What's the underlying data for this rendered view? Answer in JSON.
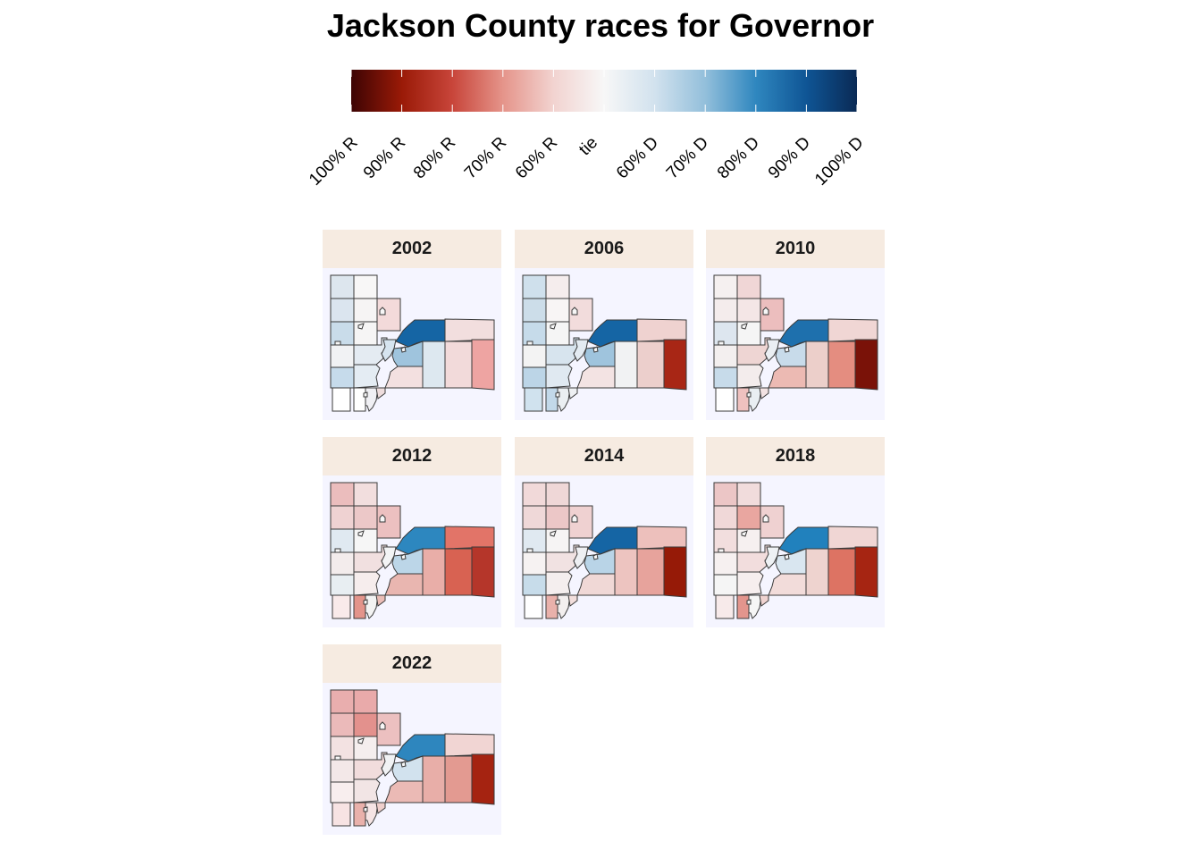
{
  "title": "Jackson County races for Governor",
  "legend": {
    "labels": [
      "100% R",
      "90% R",
      "80% R",
      "70% R",
      "60% R",
      "tie",
      "60% D",
      "70% D",
      "80% D",
      "90% D",
      "100% D"
    ],
    "colors": [
      "#3d0404",
      "#9a1a07",
      "#c8453a",
      "#e5948a",
      "#f2d3d0",
      "#f7f7f7",
      "#d2e2ee",
      "#93bfdb",
      "#2f87bf",
      "#0f5595",
      "#0a2a55"
    ]
  },
  "panels": [
    {
      "year": "2002",
      "fills": [
        "#dde6ee",
        "#f8f7f7",
        "#dbe5ef",
        "#f6f4f4",
        "#f3dada",
        "#f6f5f5",
        "#c9dcea",
        "#f1f2f4",
        "#e4ebf2",
        "#1565a4",
        "#f2dede",
        "#d6e4ef",
        "#e4ecf3",
        "#9fc4dd",
        "#f3e0e0",
        "#dde8f0",
        "#f2dada",
        "#eea4a2",
        "#c6dbeb",
        "#f0f0f4",
        "#eedddd",
        "#ffffff",
        "#ffffff"
      ]
    },
    {
      "year": "2006",
      "fills": [
        "#cfe0ec",
        "#f5eded",
        "#ccdde9",
        "#f8f5f5",
        "#f2dcdc",
        "#f5f5f5",
        "#c6dbea",
        "#f3f3f3",
        "#d7e4ee",
        "#1565a4",
        "#efd2d0",
        "#e3ebf2",
        "#e0e9f1",
        "#9fc4dd",
        "#f3e3e3",
        "#f1f2f3",
        "#eccfcc",
        "#a82615",
        "#bcd5e7",
        "#ebeff2",
        "#eef0f3",
        "#d0e2ee",
        "#c2d8e9"
      ]
    },
    {
      "year": "2010",
      "fills": [
        "#f5f0f0",
        "#f0d6d6",
        "#f4ecec",
        "#f4e6e6",
        "#ecbebe",
        "#f5f5f5",
        "#dde6ef",
        "#f3efef",
        "#eed5d3",
        "#1e70ad",
        "#f0d6d4",
        "#ebeff3",
        "#f3ecec",
        "#c8dbea",
        "#ecbab3",
        "#eccfca",
        "#e48d80",
        "#7a1208",
        "#c7dbea",
        "#e9eef2",
        "#f2e2e2",
        "#ffffff",
        "#efc1bf"
      ]
    },
    {
      "year": "2012",
      "fills": [
        "#ebbdbd",
        "#f2dede",
        "#efd2d2",
        "#ecc8c8",
        "#ecc0c0",
        "#f6f6f6",
        "#e0e9f1",
        "#f3ecec",
        "#f1e0e0",
        "#2d87bf",
        "#e27468",
        "#f3f4f5",
        "#f6eded",
        "#bcd6e8",
        "#e9b6b0",
        "#e9aea8",
        "#d86252",
        "#b5362a",
        "#e8eef2",
        "#f3f3f3",
        "#ebbdb7",
        "#f9eaea",
        "#e3948b"
      ]
    },
    {
      "year": "2014",
      "fills": [
        "#f1d9d9",
        "#efd7d7",
        "#efd8d8",
        "#ecc7c7",
        "#efd1d1",
        "#f6f4f4",
        "#e0e9f1",
        "#f6f2f2",
        "#f1e2e2",
        "#1565a4",
        "#edc0bc",
        "#eeeff2",
        "#f4eeee",
        "#b9d4e7",
        "#f0d8d6",
        "#edc4c0",
        "#e7a39c",
        "#961a07",
        "#c7dcea",
        "#f3efef",
        "#f2dedc",
        "#ffffff",
        "#e9b1ab"
      ]
    },
    {
      "year": "2018",
      "fills": [
        "#ecc6c6",
        "#f1dcdc",
        "#f0d8d8",
        "#e9a6a0",
        "#efd1d1",
        "#f6f0f0",
        "#f2dede",
        "#f6f0f0",
        "#f2dddd",
        "#2181bd",
        "#f0d6d4",
        "#eef1f4",
        "#f6eeee",
        "#d9e6f0",
        "#f2dcda",
        "#eed3cf",
        "#dd7363",
        "#a62512",
        "#f5f5f5",
        "#f6f6f6",
        "#efd3d1",
        "#f7eaea",
        "#e3958d"
      ]
    },
    {
      "year": "2022",
      "fills": [
        "#e9aeae",
        "#e9aaaa",
        "#ebbaba",
        "#e3918d",
        "#ecc0c0",
        "#f5eeee",
        "#f3e2e2",
        "#f3e8e8",
        "#f1dcdc",
        "#2e86be",
        "#f1d5d3",
        "#f1f2f4",
        "#f2e5e5",
        "#d2e2ee",
        "#ebbab5",
        "#e8aea8",
        "#e39a91",
        "#a52311",
        "#f8eeee",
        "#f5e4e4",
        "#efcfcc",
        "#f7e3e3",
        "#e9b1ab"
      ]
    }
  ]
}
